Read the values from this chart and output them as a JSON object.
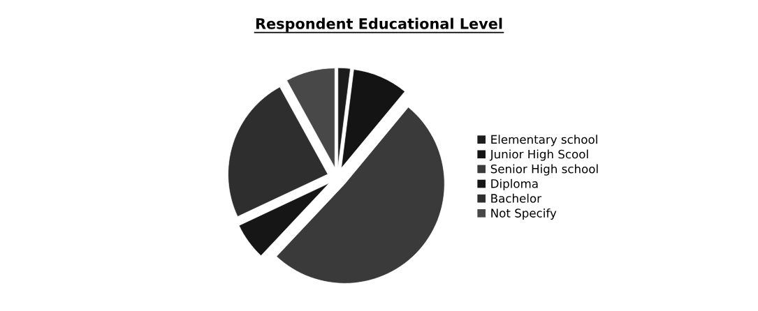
{
  "chart_data": {
    "type": "pie",
    "title": "Respondent Educational Level",
    "categories": [
      "Elementary school",
      "Junior High Scool",
      "Senior High school",
      "Diploma",
      "Bachelor",
      "Not Specify"
    ],
    "values": [
      2,
      9,
      51,
      6,
      24,
      8
    ],
    "colors": [
      "#1c1c1c",
      "#141414",
      "#3a3a3a",
      "#161616",
      "#2e2e2e",
      "#484848"
    ],
    "legend": "right"
  }
}
